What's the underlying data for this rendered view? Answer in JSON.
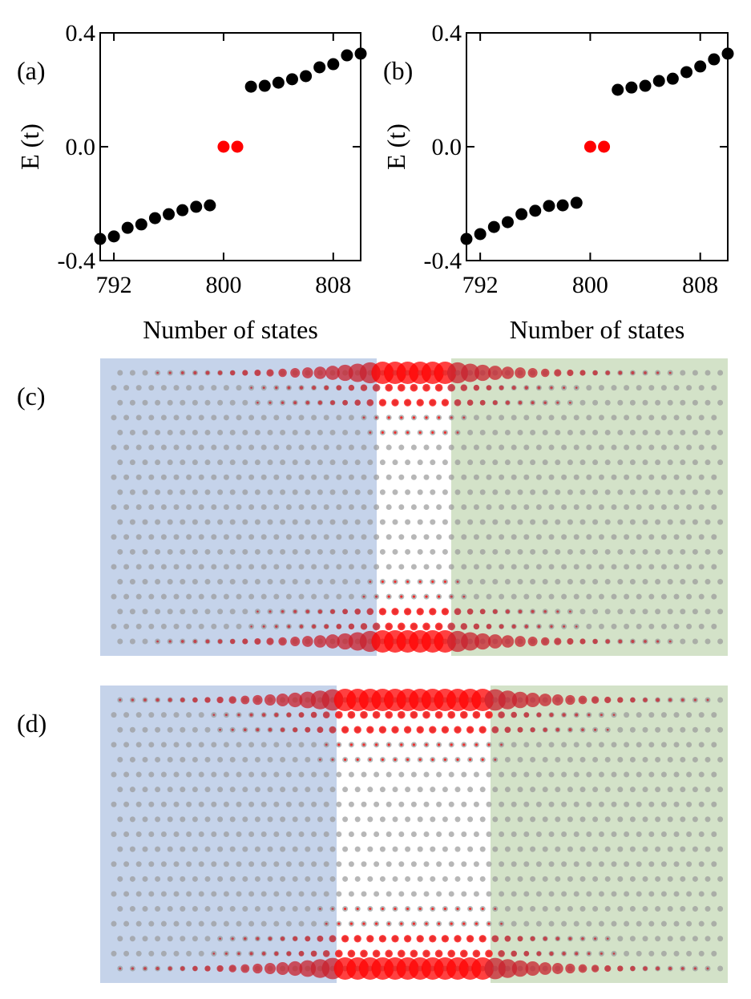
{
  "chart_data": [
    {
      "type": "scatter",
      "label": "(a)",
      "xlabel": "Number of states",
      "ylabel": "E (t)",
      "xlim": [
        791,
        810
      ],
      "ylim": [
        -0.4,
        0.4
      ],
      "xticks": [
        792,
        800,
        808
      ],
      "yticks": [
        0.4,
        {
          "value": 0,
          "label": "0.0"
        },
        -0.4
      ],
      "series": [
        {
          "color": "#000000",
          "x": [
            791,
            792,
            793,
            794,
            795,
            796,
            797,
            798,
            799,
            802,
            803,
            804,
            805,
            806,
            807,
            808,
            809,
            810
          ],
          "values": [
            -0.324,
            -0.315,
            -0.285,
            -0.273,
            -0.251,
            -0.237,
            -0.223,
            -0.211,
            -0.206,
            0.211,
            0.214,
            0.225,
            0.237,
            0.248,
            0.279,
            0.29,
            0.321,
            0.327
          ]
        },
        {
          "color": "#ff0000",
          "x": [
            800,
            801
          ],
          "values": [
            0,
            0
          ]
        }
      ]
    },
    {
      "type": "scatter",
      "label": "(b)",
      "xlabel": "Number of states",
      "ylabel": "E (t)",
      "xlim": [
        791,
        810
      ],
      "ylim": [
        -0.4,
        0.4
      ],
      "xticks": [
        792,
        800,
        808
      ],
      "yticks": [
        0.4,
        {
          "value": 0,
          "label": "0.0"
        },
        -0.4
      ],
      "series": [
        {
          "color": "#000000",
          "x": [
            791,
            792,
            793,
            794,
            795,
            796,
            797,
            798,
            799,
            802,
            803,
            804,
            805,
            806,
            807,
            808,
            809,
            810
          ],
          "values": [
            -0.324,
            -0.307,
            -0.282,
            -0.265,
            -0.237,
            -0.225,
            -0.208,
            -0.206,
            -0.197,
            0.2,
            0.208,
            0.214,
            0.231,
            0.239,
            0.262,
            0.282,
            0.307,
            0.327
          ]
        },
        {
          "color": "#ff0000",
          "x": [
            800,
            801
          ],
          "values": [
            0,
            0
          ]
        }
      ]
    }
  ],
  "panels": [
    {
      "label": "(c)"
    },
    {
      "label": "(d)"
    }
  ]
}
